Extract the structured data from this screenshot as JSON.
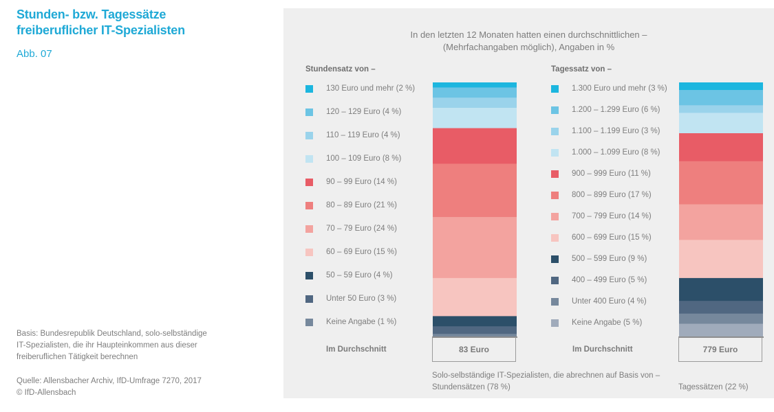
{
  "header": {
    "title_line1": "Stunden- bzw. Tagessätze",
    "title_line2": "freiberuflicher IT-Spezialisten",
    "figure_number": "Abb. 07"
  },
  "notes": {
    "basis_line1": "Basis: Bundesrepublik Deutschland, solo-selbständige",
    "basis_line2": "IT-Spezialisten, die ihr Haupteinkommen aus dieser",
    "basis_line3": "freiberuflichen Tätigkeit berechnen",
    "source_line1": "Quelle: Allensbacher Archiv, IfD-Umfrage 7270, 2017",
    "source_line2": "© IfD-Allensbach"
  },
  "chart_data": {
    "type": "bar",
    "stacked": true,
    "unit": "%",
    "title_line1": "In den letzten 12 Monaten hatten einen durchschnittlichen –",
    "title_line2": "(Mehrfachangaben möglich), Angaben in %",
    "footnote_line1": "Solo-selbständige IT-Spezialisten, die abrechnen auf Basis von –",
    "charts": [
      {
        "heading": "Stundensatz von –",
        "average_label": "Im Durchschnitt",
        "average_value": "83 Euro",
        "basis_label": "Stundensätzen (78 %)",
        "segments": [
          {
            "label": "130 Euro und mehr (2 %)",
            "value": 2,
            "color": "#1cb6df"
          },
          {
            "label": "120 – 129 Euro (4 %)",
            "value": 4,
            "color": "#6cc4e4"
          },
          {
            "label": "110 – 119 Euro (4 %)",
            "value": 4,
            "color": "#9ad3eb"
          },
          {
            "label": "100 – 109 Euro (8 %)",
            "value": 8,
            "color": "#c1e4f2"
          },
          {
            "label": "90 – 99 Euro (14 %)",
            "value": 14,
            "color": "#e85c66"
          },
          {
            "label": "80 – 89 Euro (21 %)",
            "value": 21,
            "color": "#ee7f7e"
          },
          {
            "label": "70 – 79 Euro (24 %)",
            "value": 24,
            "color": "#f3a39f"
          },
          {
            "label": "60 – 69 Euro (15 %)",
            "value": 15,
            "color": "#f7c5c0"
          },
          {
            "label": "50 – 59 Euro (4 %)",
            "value": 4,
            "color": "#2c4f69"
          },
          {
            "label": "Unter 50 Euro (3 %)",
            "value": 3,
            "color": "#506781"
          },
          {
            "label": "Keine Angabe (1 %)",
            "value": 1,
            "color": "#76889c"
          }
        ]
      },
      {
        "heading": "Tagessatz von –",
        "average_label": "Im Durchschnitt",
        "average_value": "779 Euro",
        "basis_label": "Tagessätzen (22 %)",
        "segments": [
          {
            "label": "1.300 Euro und mehr (3 %)",
            "value": 3,
            "color": "#1cb6df"
          },
          {
            "label": "1.200 – 1.299 Euro (6 %)",
            "value": 6,
            "color": "#6cc4e4"
          },
          {
            "label": "1.100 – 1.199 Euro (3 %)",
            "value": 3,
            "color": "#9ad3eb"
          },
          {
            "label": "1.000 – 1.099 Euro (8 %)",
            "value": 8,
            "color": "#c1e4f2"
          },
          {
            "label": "900 – 999 Euro (11 %)",
            "value": 11,
            "color": "#e85c66"
          },
          {
            "label": "800 – 899 Euro (17 %)",
            "value": 17,
            "color": "#ee7f7e"
          },
          {
            "label": "700 – 799 Euro (14 %)",
            "value": 14,
            "color": "#f3a39f"
          },
          {
            "label": "600 – 699 Euro (15 %)",
            "value": 15,
            "color": "#f7c5c0"
          },
          {
            "label": "500 – 599 Euro (9 %)",
            "value": 9,
            "color": "#2c4f69"
          },
          {
            "label": "400 – 499 Euro (5 %)",
            "value": 5,
            "color": "#506781"
          },
          {
            "label": "Unter 400 Euro (4 %)",
            "value": 4,
            "color": "#76889c"
          },
          {
            "label": "Keine Angabe (5 %)",
            "value": 5,
            "color": "#a0abbb"
          }
        ]
      }
    ]
  }
}
